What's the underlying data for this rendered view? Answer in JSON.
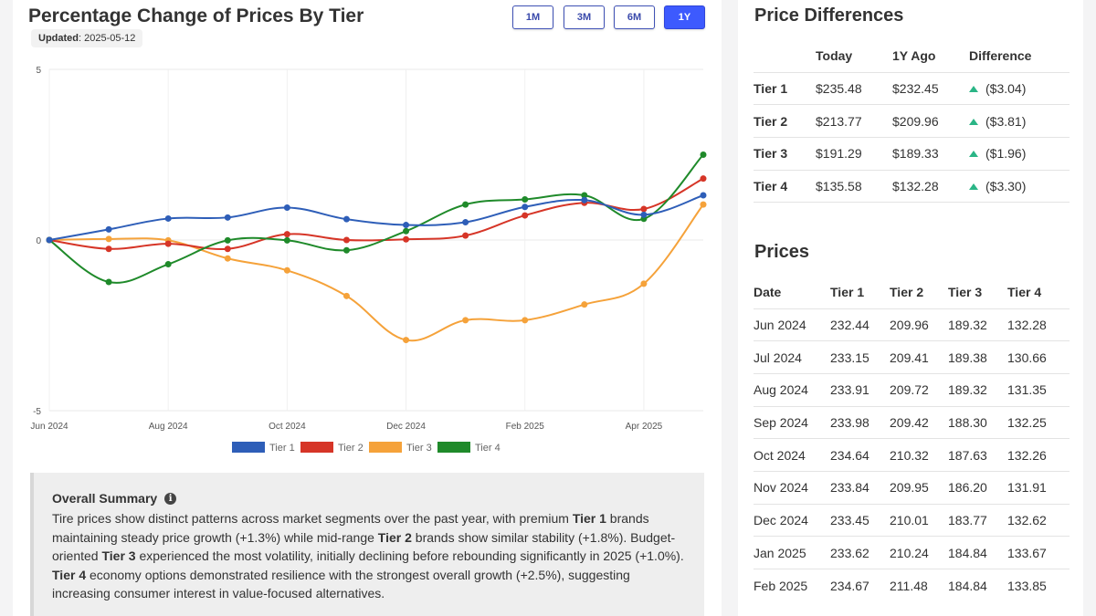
{
  "chart_title": "Percentage Change of Prices By Tier",
  "updated_label": "Updated",
  "updated_date": ": 2025-05-12",
  "range_buttons": [
    "1M",
    "3M",
    "6M",
    "1Y"
  ],
  "active_range": "1Y",
  "chart_data": {
    "type": "line",
    "title": "Percentage Change of Prices By Tier",
    "ylim": [
      -5,
      5
    ],
    "y_ticks": [
      "5",
      "0",
      "-5"
    ],
    "x_labels": [
      "Jun 2024",
      "Aug 2024",
      "Oct 2024",
      "Dec 2024",
      "Feb 2025",
      "Apr 2025"
    ],
    "x": [
      "Jun 2024",
      "Jul 2024",
      "Aug 2024",
      "Sep 2024",
      "Oct 2024",
      "Nov 2024",
      "Dec 2024",
      "Jan 2025",
      "Feb 2025",
      "Mar 2025",
      "Apr 2025",
      "May 2025"
    ],
    "series": [
      {
        "name": "Tier 1",
        "color": "#2e5eb8",
        "values": [
          0,
          0.31,
          0.63,
          0.66,
          0.95,
          0.61,
          0.44,
          0.52,
          0.97,
          1.17,
          0.74,
          1.31
        ]
      },
      {
        "name": "Tier 2",
        "color": "#d63527",
        "values": [
          0,
          -0.26,
          -0.11,
          -0.26,
          0.17,
          0,
          0.02,
          0.13,
          0.72,
          1.09,
          0.91,
          1.8
        ]
      },
      {
        "name": "Tier 3",
        "color": "#f5a23a",
        "values": [
          0,
          0.03,
          -0.01,
          -0.54,
          -0.89,
          -1.64,
          -2.93,
          -2.35,
          -2.35,
          -1.89,
          -1.28,
          1.04
        ]
      },
      {
        "name": "Tier 4",
        "color": "#1f8a2a",
        "values": [
          0,
          -1.23,
          -0.71,
          -0.01,
          -0.01,
          -0.3,
          0.26,
          1.04,
          1.19,
          1.31,
          0.62,
          2.5
        ]
      }
    ]
  },
  "summary": {
    "heading": "Overall Summary",
    "p1": "Tire prices show distinct patterns across market segments over the past year, with premium ",
    "t1": "Tier 1",
    "p2": " brands maintaining steady price growth (+1.3%) while mid-range ",
    "t2": "Tier 2",
    "p3": " brands show similar stability (+1.8%). Budget-oriented ",
    "t3": "Tier 3",
    "p4": " experienced the most volatility, initially declining before rebounding significantly in 2025 (+1.0%). ",
    "t4": "Tier 4",
    "p5": " economy options demonstrated resilience with the strongest overall growth (+2.5%), suggesting increasing consumer interest in value-focused alternatives."
  },
  "price_differences": {
    "title": "Price Differences",
    "headers": [
      "",
      "Today",
      "1Y Ago",
      "Difference"
    ],
    "rows": [
      [
        "Tier 1",
        "$235.48",
        "$232.45",
        "($3.04)"
      ],
      [
        "Tier 2",
        "$213.77",
        "$209.96",
        "($3.81)"
      ],
      [
        "Tier 3",
        "$191.29",
        "$189.33",
        "($1.96)"
      ],
      [
        "Tier 4",
        "$135.58",
        "$132.28",
        "($3.30)"
      ]
    ],
    "up_color": "#2ab586"
  },
  "prices": {
    "title": "Prices",
    "headers": [
      "Date",
      "Tier 1",
      "Tier 2",
      "Tier 3",
      "Tier 4"
    ],
    "rows": [
      [
        "Jun 2024",
        "232.44",
        "209.96",
        "189.32",
        "132.28"
      ],
      [
        "Jul 2024",
        "233.15",
        "209.41",
        "189.38",
        "130.66"
      ],
      [
        "Aug 2024",
        "233.91",
        "209.72",
        "189.32",
        "131.35"
      ],
      [
        "Sep 2024",
        "233.98",
        "209.42",
        "188.30",
        "132.25"
      ],
      [
        "Oct 2024",
        "234.64",
        "210.32",
        "187.63",
        "132.26"
      ],
      [
        "Nov 2024",
        "233.84",
        "209.95",
        "186.20",
        "131.91"
      ],
      [
        "Dec 2024",
        "233.45",
        "210.01",
        "183.77",
        "132.62"
      ],
      [
        "Jan 2025",
        "233.62",
        "210.24",
        "184.84",
        "133.67"
      ],
      [
        "Feb 2025",
        "234.67",
        "211.48",
        "184.84",
        "133.85"
      ]
    ]
  }
}
